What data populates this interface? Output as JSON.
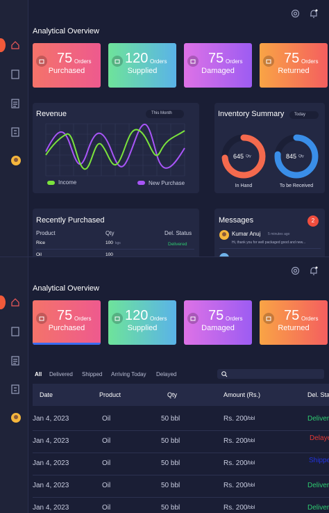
{
  "overview_title": "Analytical Overview",
  "cards": [
    {
      "value": 75,
      "unit": "Orders",
      "label": "Purchased"
    },
    {
      "value": 120,
      "unit": "Orders",
      "label": "Supplied"
    },
    {
      "value": 75,
      "unit": "Orders",
      "label": "Damaged"
    },
    {
      "value": 75,
      "unit": "Orders",
      "label": "Returned"
    }
  ],
  "revenue": {
    "title": "Revenue",
    "period": "This Month",
    "legend": [
      "Income",
      "New Purchase"
    ]
  },
  "inventory": {
    "title": "Inventory Summary",
    "period": "Today",
    "items": [
      {
        "value": 645,
        "unit": "Qty",
        "label": "In Hand"
      },
      {
        "value": 845,
        "unit": "Qty",
        "label": "To be Received"
      }
    ]
  },
  "recent": {
    "title": "Recently Purchased",
    "columns": [
      "Product",
      "Qty",
      "Del. Status"
    ],
    "rows": [
      {
        "product": "Rice",
        "qty": 100,
        "unit": "kgs",
        "status": "Delivered"
      },
      {
        "product": "Oil",
        "qty": 100
      }
    ]
  },
  "messages": {
    "title": "Messages",
    "count": 2,
    "items": [
      {
        "name": "Kumar Anuj",
        "time": "5 minutes ago",
        "text": "Hi, thank you for well packaged good and new..."
      }
    ]
  },
  "orders": {
    "tabs": [
      "All",
      "Delivered",
      "Shipped",
      "Arriving Today",
      "Delayed"
    ],
    "columns": [
      "Date",
      "Product",
      "Qty",
      "Amount (Rs.)",
      "Del. Status"
    ],
    "rows": [
      {
        "date": "Jan 4, 2023",
        "product": "Oil",
        "qty": "50 bbl",
        "amount": "Rs. 200",
        "per": "/bbl",
        "status": "Delivered",
        "status_color": "#2ecc71"
      },
      {
        "date": "Jan 4, 2023",
        "product": "Oil",
        "qty": "50 bbl",
        "amount": "Rs. 200",
        "per": "/bbl",
        "status": "Delayed",
        "status_color": "#e53935"
      },
      {
        "date": "Jan 4, 2023",
        "product": "Oil",
        "qty": "50 bbl",
        "amount": "Rs. 200",
        "per": "/bbl",
        "status": "Shipped",
        "status_color": "#2233dd"
      },
      {
        "date": "Jan 4, 2023",
        "product": "Oil",
        "qty": "50 bbl",
        "amount": "Rs. 200",
        "per": "/bbl",
        "status": "Delivered",
        "status_color": "#2ecc71"
      },
      {
        "date": "Jan 4, 2023",
        "product": "Oil",
        "qty": "50 bbl",
        "amount": "Rs. 200",
        "per": "/bbl",
        "status": "Delivered",
        "status_color": "#2ecc71"
      }
    ]
  }
}
